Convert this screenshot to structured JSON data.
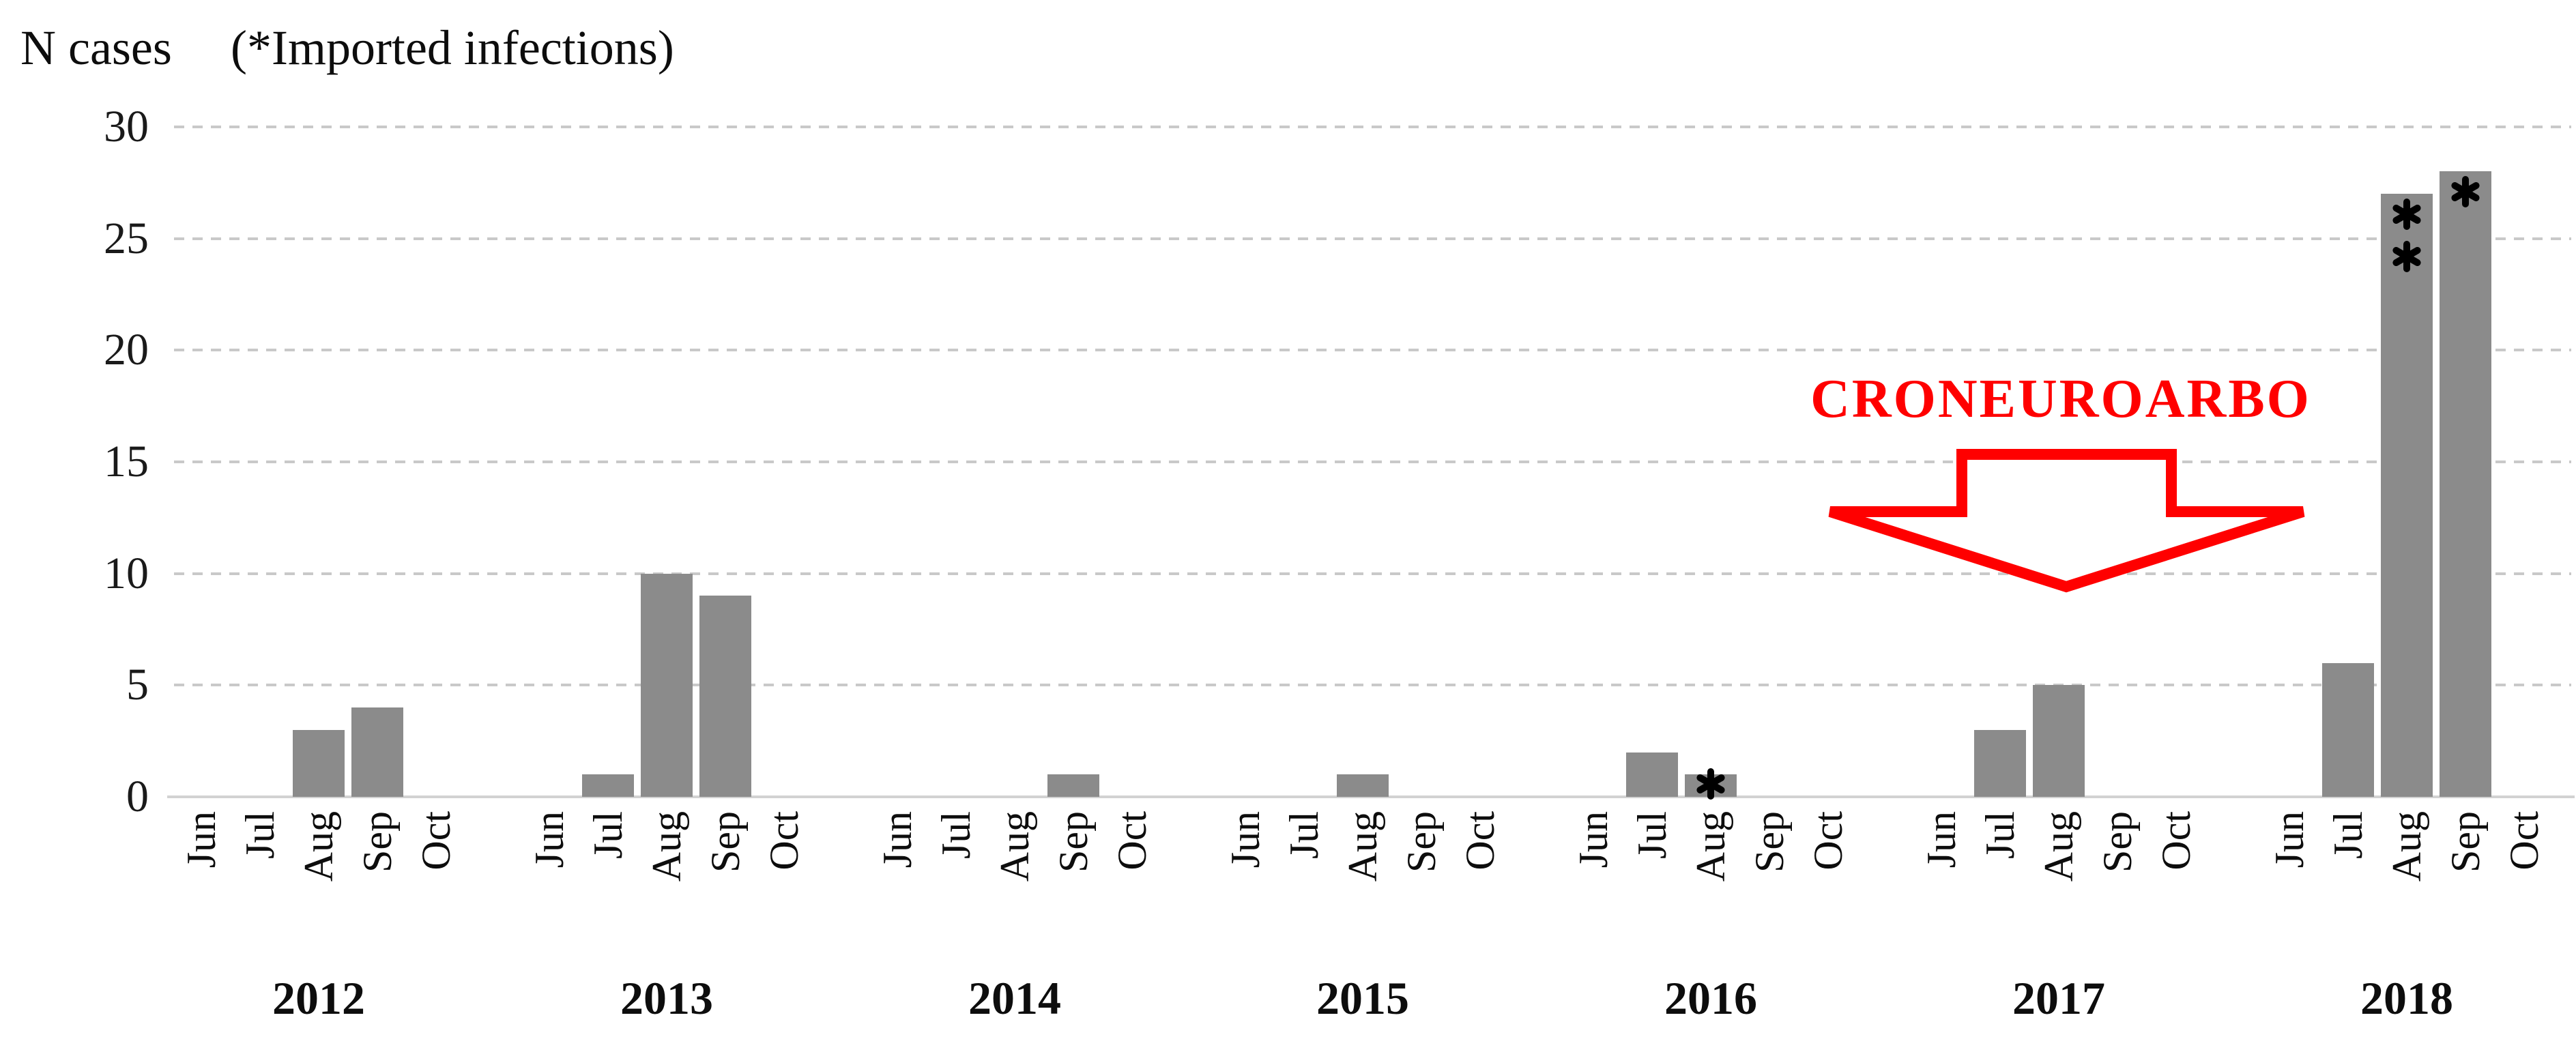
{
  "header": {
    "axis_label": "N cases",
    "note": "(*Imported infections)"
  },
  "chart_data": {
    "type": "bar",
    "title": "N cases",
    "subtitle": "(*Imported infections)",
    "xlabel": "",
    "ylabel": "N cases",
    "ylim": [
      0,
      30
    ],
    "yticks": [
      0,
      5,
      10,
      15,
      20,
      25,
      30
    ],
    "grid": "horizontal dashed gridlines at each y tick",
    "legend_position": "none",
    "bar_color": "#8B8B8B",
    "asterisk_meaning": "imported infection case",
    "months": [
      "Jun",
      "Jul",
      "Aug",
      "Sep",
      "Oct"
    ],
    "series": [
      {
        "year": "2012",
        "values": [
          0,
          0,
          3,
          4,
          0
        ],
        "imported_marks": [
          0,
          0,
          0,
          0,
          0
        ]
      },
      {
        "year": "2013",
        "values": [
          0,
          1,
          10,
          9,
          0
        ],
        "imported_marks": [
          0,
          0,
          0,
          0,
          0
        ]
      },
      {
        "year": "2014",
        "values": [
          0,
          0,
          0,
          1,
          0
        ],
        "imported_marks": [
          0,
          0,
          0,
          0,
          0
        ]
      },
      {
        "year": "2015",
        "values": [
          0,
          0,
          1,
          0,
          0
        ],
        "imported_marks": [
          0,
          0,
          0,
          0,
          0
        ]
      },
      {
        "year": "2016",
        "values": [
          0,
          2,
          1,
          0,
          0
        ],
        "imported_marks": [
          0,
          0,
          1,
          0,
          0
        ]
      },
      {
        "year": "2017",
        "values": [
          0,
          3,
          5,
          0,
          0
        ],
        "imported_marks": [
          0,
          0,
          0,
          0,
          0
        ]
      },
      {
        "year": "2018",
        "values": [
          0,
          6,
          27,
          28,
          0
        ],
        "imported_marks": [
          0,
          0,
          2,
          1,
          0
        ]
      }
    ],
    "annotation": {
      "text": "CRONEUROARBO",
      "color": "#FF0000",
      "arrow_direction": "down",
      "position": "above the 2017 season, left of the 2018 bars"
    }
  }
}
